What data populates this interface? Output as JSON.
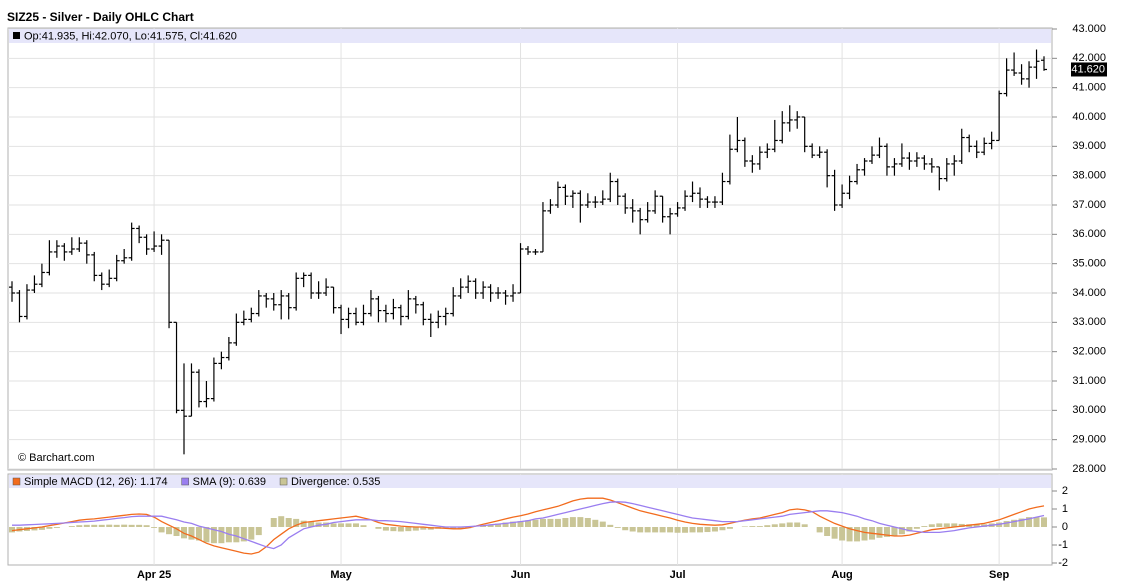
{
  "chart_data": {
    "type": "ohlc",
    "title": "SIZ25 - Silver - Daily OHLC Chart",
    "ohlc_legend": "Op:41.935, Hi:42.070, Lo:41.575, Cl:41.620",
    "last_price_label": "41.620",
    "watermark": "© Barchart.com",
    "color": "#000000",
    "grid": true,
    "categories": [
      null,
      null,
      null,
      null,
      null,
      null,
      null,
      null,
      null,
      null,
      null,
      null,
      null,
      null,
      null,
      null,
      null,
      null,
      null,
      "Apr 25",
      null,
      null,
      null,
      null,
      null,
      null,
      null,
      null,
      null,
      null,
      null,
      null,
      null,
      null,
      null,
      null,
      null,
      null,
      null,
      null,
      null,
      null,
      null,
      null,
      "May",
      null,
      null,
      null,
      null,
      null,
      null,
      null,
      null,
      null,
      null,
      null,
      null,
      null,
      null,
      null,
      null,
      null,
      null,
      null,
      null,
      null,
      null,
      null,
      "Jun",
      null,
      null,
      null,
      null,
      null,
      null,
      null,
      null,
      null,
      null,
      null,
      null,
      null,
      null,
      null,
      null,
      null,
      null,
      null,
      null,
      "Jul",
      null,
      null,
      null,
      null,
      null,
      null,
      null,
      null,
      null,
      null,
      null,
      null,
      null,
      null,
      null,
      null,
      null,
      null,
      null,
      null,
      null,
      "Aug",
      null,
      null,
      null,
      null,
      null,
      null,
      null,
      null,
      null,
      null,
      null,
      null,
      null,
      null,
      null,
      null,
      null,
      null,
      null,
      null,
      "Sep",
      null,
      null,
      null,
      null,
      null,
      null
    ],
    "open": [
      34.2,
      34.0,
      33.2,
      34.1,
      34.3,
      34.7,
      35.4,
      35.6,
      35.4,
      35.5,
      35.7,
      35.3,
      34.6,
      34.3,
      34.5,
      35.1,
      35.2,
      36.2,
      35.9,
      35.5,
      35.6,
      35.8,
      33.0,
      30.0,
      29.8,
      31.3,
      30.3,
      30.4,
      31.6,
      31.8,
      32.3,
      33.0,
      33.1,
      33.3,
      33.9,
      33.8,
      33.6,
      33.9,
      33.5,
      34.5,
      34.6,
      34.0,
      34.0,
      34.2,
      33.5,
      33.1,
      33.3,
      33.0,
      33.3,
      33.8,
      33.4,
      33.3,
      33.5,
      33.2,
      33.8,
      33.6,
      33.1,
      33.0,
      33.2,
      33.3,
      33.9,
      34.2,
      34.4,
      34.0,
      34.2,
      34.0,
      34.0,
      33.9,
      34.0,
      35.5,
      35.4,
      35.4,
      36.8,
      37.0,
      37.6,
      37.3,
      37.4,
      37.0,
      37.1,
      37.1,
      37.2,
      37.8,
      37.3,
      36.9,
      36.8,
      36.5,
      36.8,
      37.3,
      36.6,
      36.7,
      36.9,
      37.3,
      37.4,
      37.2,
      37.1,
      37.1,
      37.8,
      38.9,
      39.2,
      38.5,
      38.4,
      38.8,
      38.9,
      39.2,
      39.8,
      39.9,
      40.0,
      39.0,
      38.7,
      38.8,
      38.0,
      37.0,
      37.4,
      37.8,
      38.2,
      38.5,
      38.7,
      39.0,
      38.3,
      38.4,
      38.6,
      38.5,
      38.6,
      38.4,
      38.3,
      37.9,
      38.4,
      38.5,
      39.3,
      39.0,
      38.8,
      39.1,
      39.2,
      40.8,
      41.6,
      41.5,
      41.3,
      41.7,
      41.935
    ],
    "high": [
      34.4,
      34.1,
      34.3,
      34.6,
      35.0,
      35.8,
      35.8,
      35.7,
      35.9,
      35.9,
      35.8,
      35.4,
      34.7,
      34.8,
      35.3,
      35.5,
      36.4,
      36.3,
      36.0,
      36.1,
      36.0,
      35.8,
      33.0,
      31.6,
      31.6,
      31.4,
      31.0,
      31.8,
      32.0,
      32.5,
      33.3,
      33.4,
      33.5,
      34.1,
      34.0,
      34.0,
      34.1,
      34.0,
      34.7,
      34.7,
      34.7,
      34.4,
      34.5,
      34.2,
      33.6,
      33.5,
      33.5,
      33.6,
      34.1,
      33.9,
      33.6,
      33.8,
      33.6,
      34.1,
      33.9,
      33.7,
      33.3,
      33.4,
      33.5,
      34.2,
      34.5,
      34.6,
      34.5,
      34.4,
      34.3,
      34.2,
      34.1,
      34.3,
      35.7,
      35.6,
      35.5,
      37.1,
      37.2,
      37.8,
      37.7,
      37.5,
      37.5,
      37.4,
      37.3,
      37.5,
      38.1,
      37.9,
      37.4,
      37.2,
      36.9,
      37.1,
      37.5,
      37.3,
      36.9,
      37.1,
      37.5,
      37.8,
      37.6,
      37.3,
      37.3,
      38.1,
      39.4,
      40.0,
      39.3,
      38.7,
      39.0,
      39.1,
      39.9,
      40.2,
      40.4,
      40.2,
      40.0,
      39.1,
      39.0,
      38.9,
      38.2,
      37.7,
      38.0,
      38.4,
      38.6,
      39.0,
      39.3,
      39.1,
      38.6,
      39.1,
      38.8,
      38.8,
      38.7,
      38.6,
      38.3,
      38.6,
      38.7,
      39.6,
      39.4,
      39.2,
      39.3,
      39.5,
      40.9,
      42.0,
      42.2,
      41.8,
      41.9,
      42.3,
      42.07
    ],
    "low": [
      33.7,
      33.0,
      33.1,
      34.0,
      34.2,
      34.6,
      35.2,
      35.1,
      35.3,
      35.4,
      35.0,
      34.4,
      34.1,
      34.2,
      34.4,
      35.0,
      35.1,
      35.7,
      35.3,
      35.4,
      35.3,
      32.8,
      29.9,
      28.5,
      29.8,
      30.1,
      30.1,
      30.3,
      31.4,
      31.7,
      32.2,
      32.9,
      33.0,
      33.2,
      33.5,
      33.4,
      33.1,
      33.1,
      33.4,
      34.2,
      33.8,
      33.8,
      33.9,
      33.3,
      32.6,
      32.8,
      32.9,
      32.9,
      33.2,
      33.0,
      33.0,
      33.1,
      32.9,
      33.1,
      33.3,
      32.9,
      32.5,
      32.8,
      32.9,
      33.2,
      33.8,
      34.0,
      33.8,
      33.8,
      33.7,
      33.8,
      33.6,
      33.7,
      34.0,
      35.3,
      35.3,
      35.4,
      36.7,
      36.9,
      37.0,
      36.9,
      36.4,
      36.9,
      36.9,
      37.0,
      37.1,
      37.0,
      36.7,
      36.4,
      36.0,
      36.4,
      36.7,
      36.4,
      36.0,
      36.6,
      36.8,
      37.1,
      36.9,
      36.9,
      36.9,
      37.0,
      37.7,
      38.8,
      38.3,
      38.1,
      38.2,
      38.6,
      38.8,
      39.1,
      39.5,
      39.6,
      38.8,
      38.6,
      38.6,
      37.6,
      36.8,
      36.9,
      37.2,
      37.7,
      38.0,
      38.4,
      38.6,
      38.0,
      38.0,
      38.3,
      38.2,
      38.3,
      38.2,
      38.1,
      37.5,
      37.8,
      38.0,
      38.4,
      38.8,
      38.6,
      38.7,
      38.9,
      39.2,
      40.7,
      41.4,
      41.1,
      41.0,
      41.3,
      41.575
    ],
    "close": [
      34.0,
      33.2,
      34.1,
      34.3,
      34.7,
      35.4,
      35.6,
      35.4,
      35.5,
      35.7,
      35.3,
      34.6,
      34.3,
      34.5,
      35.1,
      35.2,
      36.2,
      35.9,
      35.5,
      35.6,
      35.8,
      33.0,
      30.0,
      29.8,
      31.3,
      30.3,
      30.4,
      31.6,
      31.8,
      32.3,
      33.0,
      33.1,
      33.3,
      33.9,
      33.8,
      33.6,
      33.9,
      33.5,
      34.5,
      34.6,
      34.0,
      34.0,
      34.2,
      33.5,
      33.1,
      33.3,
      33.0,
      33.3,
      33.8,
      33.4,
      33.3,
      33.5,
      33.2,
      33.8,
      33.6,
      33.1,
      33.0,
      33.2,
      33.3,
      33.9,
      34.2,
      34.4,
      34.0,
      34.2,
      34.0,
      34.0,
      33.9,
      34.0,
      35.5,
      35.4,
      35.4,
      36.8,
      37.0,
      37.6,
      37.3,
      37.4,
      37.0,
      37.1,
      37.1,
      37.2,
      37.8,
      37.3,
      36.9,
      36.8,
      36.5,
      36.8,
      37.3,
      36.6,
      36.7,
      36.9,
      37.3,
      37.4,
      37.2,
      37.1,
      37.1,
      37.8,
      38.9,
      39.2,
      38.5,
      38.4,
      38.8,
      38.9,
      39.2,
      39.8,
      39.9,
      40.0,
      39.0,
      38.7,
      38.8,
      38.0,
      37.0,
      37.4,
      37.8,
      38.2,
      38.5,
      38.7,
      39.0,
      38.3,
      38.4,
      38.6,
      38.5,
      38.6,
      38.4,
      38.3,
      37.9,
      38.4,
      38.5,
      39.3,
      39.0,
      38.8,
      39.1,
      39.2,
      40.8,
      41.6,
      41.5,
      41.3,
      41.7,
      41.9,
      41.62
    ],
    "ylim": [
      28,
      43
    ],
    "yticks": [
      {
        "value": 28,
        "label": "28.000"
      },
      {
        "value": 29,
        "label": "29.000"
      },
      {
        "value": 30,
        "label": "30.000"
      },
      {
        "value": 31,
        "label": "31.000"
      },
      {
        "value": 32,
        "label": "32.000"
      },
      {
        "value": 33,
        "label": "33.000"
      },
      {
        "value": 34,
        "label": "34.000"
      },
      {
        "value": 35,
        "label": "35.000"
      },
      {
        "value": 36,
        "label": "36.000"
      },
      {
        "value": 37,
        "label": "37.000"
      },
      {
        "value": 38,
        "label": "38.000"
      },
      {
        "value": 39,
        "label": "39.000"
      },
      {
        "value": 40,
        "label": "40.000"
      },
      {
        "value": 41,
        "label": "41.000"
      },
      {
        "value": 42,
        "label": "42.000"
      },
      {
        "value": 43,
        "label": "43.000"
      }
    ],
    "macd": {
      "ylim": [
        -2,
        2
      ],
      "yticks": [
        -2,
        -1,
        0,
        1,
        2
      ],
      "series": [
        {
          "name": "Simple MACD (12, 26): 1.174",
          "color": "#f26b1d",
          "type": "line",
          "values": [
            -0.2,
            -0.15,
            -0.1,
            -0.05,
            0.0,
            0.08,
            0.15,
            0.22,
            0.3,
            0.38,
            0.42,
            0.45,
            0.5,
            0.55,
            0.6,
            0.65,
            0.7,
            0.72,
            0.7,
            0.55,
            0.3,
            0.1,
            -0.1,
            -0.35,
            -0.5,
            -0.7,
            -0.9,
            -1.05,
            -1.15,
            -1.25,
            -1.35,
            -1.45,
            -1.5,
            -1.4,
            -1.1,
            -0.7,
            -0.4,
            -0.1,
            0.1,
            0.25,
            0.3,
            0.35,
            0.4,
            0.45,
            0.5,
            0.55,
            0.6,
            0.5,
            0.4,
            0.25,
            0.15,
            0.1,
            0.05,
            0.02,
            0.0,
            0.0,
            -0.05,
            -0.05,
            -0.08,
            -0.1,
            -0.1,
            -0.05,
            0.05,
            0.15,
            0.25,
            0.35,
            0.45,
            0.55,
            0.62,
            0.72,
            0.85,
            0.95,
            1.05,
            1.15,
            1.3,
            1.45,
            1.55,
            1.6,
            1.6,
            1.6,
            1.5,
            1.35,
            1.2,
            1.05,
            0.9,
            0.8,
            0.7,
            0.6,
            0.5,
            0.38,
            0.28,
            0.2,
            0.15,
            0.12,
            0.1,
            0.12,
            0.2,
            0.3,
            0.38,
            0.45,
            0.5,
            0.6,
            0.7,
            0.8,
            0.95,
            1.0,
            0.95,
            0.85,
            0.6,
            0.4,
            0.2,
            0.05,
            -0.1,
            -0.2,
            -0.3,
            -0.35,
            -0.4,
            -0.45,
            -0.5,
            -0.5,
            -0.45,
            -0.35,
            -0.25,
            -0.15,
            -0.1,
            -0.05,
            0.0,
            0.05,
            0.1,
            0.15,
            0.2,
            0.3,
            0.4,
            0.55,
            0.7,
            0.85,
            1.0,
            1.1,
            1.174
          ]
        },
        {
          "name": "SMA (9): 0.639",
          "color": "#9a7ef0",
          "type": "line",
          "values": [
            0.1,
            0.1,
            0.12,
            0.14,
            0.16,
            0.18,
            0.2,
            0.22,
            0.25,
            0.28,
            0.3,
            0.33,
            0.38,
            0.42,
            0.48,
            0.52,
            0.58,
            0.6,
            0.6,
            0.6,
            0.6,
            0.5,
            0.4,
            0.28,
            0.2,
            0.05,
            -0.05,
            -0.15,
            -0.25,
            -0.4,
            -0.5,
            -0.65,
            -0.8,
            -0.95,
            -1.1,
            -1.2,
            -1.0,
            -0.6,
            -0.35,
            -0.1,
            0.0,
            0.1,
            0.15,
            0.25,
            0.3,
            0.35,
            0.4,
            0.4,
            0.4,
            0.35,
            0.35,
            0.33,
            0.3,
            0.25,
            0.2,
            0.15,
            0.1,
            0.05,
            0.0,
            0.0,
            0.0,
            0.02,
            0.05,
            0.08,
            0.12,
            0.16,
            0.2,
            0.25,
            0.3,
            0.35,
            0.45,
            0.5,
            0.6,
            0.7,
            0.8,
            0.9,
            1.0,
            1.1,
            1.2,
            1.3,
            1.38,
            1.4,
            1.38,
            1.3,
            1.2,
            1.1,
            1.0,
            0.9,
            0.8,
            0.7,
            0.6,
            0.5,
            0.45,
            0.4,
            0.35,
            0.3,
            0.3,
            0.3,
            0.35,
            0.4,
            0.45,
            0.5,
            0.55,
            0.6,
            0.7,
            0.75,
            0.8,
            0.85,
            0.9,
            0.9,
            0.85,
            0.8,
            0.7,
            0.6,
            0.45,
            0.35,
            0.2,
            0.1,
            0.0,
            -0.1,
            -0.2,
            -0.25,
            -0.3,
            -0.3,
            -0.3,
            -0.25,
            -0.2,
            -0.12,
            -0.05,
            0.0,
            0.05,
            0.1,
            0.15,
            0.22,
            0.3,
            0.38,
            0.45,
            0.55,
            0.639
          ]
        },
        {
          "name": "Divergence: 0.535",
          "color": "#c9c596",
          "type": "bar",
          "values": [
            -0.3,
            -0.25,
            -0.22,
            -0.19,
            -0.16,
            -0.1,
            -0.05,
            0.0,
            0.05,
            0.1,
            0.12,
            0.12,
            0.12,
            0.13,
            0.12,
            0.13,
            0.12,
            0.12,
            0.1,
            -0.05,
            -0.3,
            -0.4,
            -0.5,
            -0.63,
            -0.7,
            -0.75,
            -0.85,
            -0.9,
            -0.9,
            -0.85,
            -0.85,
            -0.8,
            -0.7,
            -0.45,
            0.0,
            0.5,
            0.6,
            0.5,
            0.45,
            0.35,
            0.3,
            0.25,
            0.25,
            0.2,
            0.2,
            0.2,
            0.2,
            0.1,
            0.0,
            -0.1,
            -0.2,
            -0.23,
            -0.25,
            -0.23,
            -0.2,
            -0.15,
            -0.15,
            -0.1,
            -0.08,
            -0.1,
            -0.1,
            -0.07,
            0.0,
            0.07,
            0.13,
            0.19,
            0.25,
            0.3,
            0.32,
            0.37,
            0.4,
            0.45,
            0.45,
            0.45,
            0.5,
            0.55,
            0.55,
            0.5,
            0.4,
            0.3,
            0.12,
            -0.05,
            -0.18,
            -0.25,
            -0.3,
            -0.3,
            -0.3,
            -0.3,
            -0.3,
            -0.32,
            -0.32,
            -0.3,
            -0.3,
            -0.28,
            -0.25,
            -0.18,
            -0.1,
            0.0,
            0.03,
            0.05,
            0.05,
            0.1,
            0.15,
            0.2,
            0.25,
            0.25,
            0.15,
            0.0,
            -0.3,
            -0.5,
            -0.65,
            -0.75,
            -0.8,
            -0.8,
            -0.75,
            -0.7,
            -0.6,
            -0.55,
            -0.5,
            -0.4,
            -0.25,
            -0.1,
            0.05,
            0.15,
            0.2,
            0.2,
            0.2,
            0.17,
            0.15,
            0.15,
            0.15,
            0.2,
            0.25,
            0.33,
            0.4,
            0.47,
            0.55,
            0.55,
            0.535
          ]
        }
      ]
    }
  }
}
